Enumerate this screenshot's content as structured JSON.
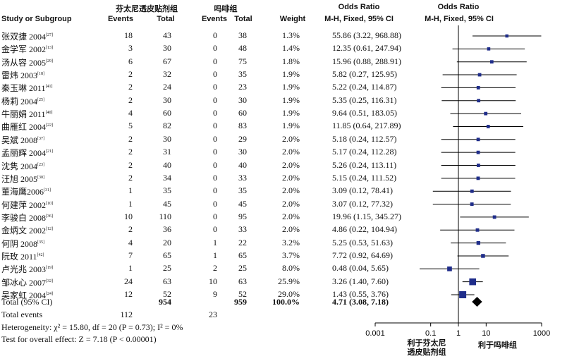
{
  "header": {
    "group1_title": "芬太尼透皮贴剂组",
    "group2_title": "吗啡组",
    "study_col": "Study or Subgroup",
    "events1": "Events",
    "total1": "Total",
    "events2": "Events",
    "total2": "Total",
    "weight": "Weight",
    "or_title_left": "Odds Ratio",
    "or_sub_left": "M-H, Fixed, 95% CI",
    "or_title_right": "Odds Ratio",
    "or_sub_right": "M-H, Fixed, 95% CI"
  },
  "rows": [
    {
      "study": "张双捷 2004",
      "ref": "[27]",
      "e1": "18",
      "t1": "43",
      "e2": "0",
      "t2": "38",
      "weight": "1.3%",
      "ci_text": "55.86 (3.22, 968.88)"
    },
    {
      "study": "金学军 2002",
      "ref": "[13]",
      "e1": "3",
      "t1": "30",
      "e2": "0",
      "t2": "48",
      "weight": "1.4%",
      "ci_text": "12.35 (0.61, 247.94)"
    },
    {
      "study": "汤从容 2005",
      "ref": "[29]",
      "e1": "6",
      "t1": "67",
      "e2": "0",
      "t2": "75",
      "weight": "1.8%",
      "ci_text": "15.96 (0.88, 288.91)"
    },
    {
      "study": "雷炜 2003",
      "ref": "[18]",
      "e1": "2",
      "t1": "32",
      "e2": "0",
      "t2": "35",
      "weight": "1.9%",
      "ci_text": "5.82 (0.27, 125.95)"
    },
    {
      "study": "秦玉琳 2011",
      "ref": "[41]",
      "e1": "2",
      "t1": "24",
      "e2": "0",
      "t2": "23",
      "weight": "1.9%",
      "ci_text": "5.22 (0.24, 114.87)"
    },
    {
      "study": "杨莉 2004",
      "ref": "[25]",
      "e1": "2",
      "t1": "30",
      "e2": "0",
      "t2": "30",
      "weight": "1.9%",
      "ci_text": "5.35 (0.25, 116.31)"
    },
    {
      "study": "牛丽娟 2011",
      "ref": "[40]",
      "e1": "4",
      "t1": "60",
      "e2": "0",
      "t2": "60",
      "weight": "1.9%",
      "ci_text": "9.64 (0.51, 183.05)"
    },
    {
      "study": "曲雁红 2004",
      "ref": "[22]",
      "e1": "5",
      "t1": "82",
      "e2": "0",
      "t2": "83",
      "weight": "1.9%",
      "ci_text": "11.85 (0.64, 217.89)"
    },
    {
      "study": "吴斌 2008",
      "ref": "[37]",
      "e1": "2",
      "t1": "30",
      "e2": "0",
      "t2": "29",
      "weight": "2.0%",
      "ci_text": "5.18 (0.24, 112.57)"
    },
    {
      "study": "孟丽辉 2004",
      "ref": "[21]",
      "e1": "2",
      "t1": "31",
      "e2": "0",
      "t2": "30",
      "weight": "2.0%",
      "ci_text": "5.17 (0.24, 112.28)"
    },
    {
      "study": "沈隽 2004",
      "ref": "[23]",
      "e1": "2",
      "t1": "40",
      "e2": "0",
      "t2": "40",
      "weight": "2.0%",
      "ci_text": "5.26 (0.24, 113.11)"
    },
    {
      "study": "汪旭 2005",
      "ref": "[30]",
      "e1": "2",
      "t1": "34",
      "e2": "0",
      "t2": "33",
      "weight": "2.0%",
      "ci_text": "5.15 (0.24, 111.52)"
    },
    {
      "study": "董海鹰2006",
      "ref": "[31]",
      "e1": "1",
      "t1": "35",
      "e2": "0",
      "t2": "35",
      "weight": "2.0%",
      "ci_text": "3.09 (0.12, 78.41)"
    },
    {
      "study": "何建萍 2002",
      "ref": "[10]",
      "e1": "1",
      "t1": "45",
      "e2": "0",
      "t2": "45",
      "weight": "2.0%",
      "ci_text": "3.07 (0.12, 77.32)"
    },
    {
      "study": "李骏白 2008",
      "ref": "[36]",
      "e1": "10",
      "t1": "110",
      "e2": "0",
      "t2": "95",
      "weight": "2.0%",
      "ci_text": "19.96 (1.15, 345.27)"
    },
    {
      "study": "金炳文 2002",
      "ref": "[12]",
      "e1": "2",
      "t1": "36",
      "e2": "0",
      "t2": "33",
      "weight": "2.0%",
      "ci_text": "4.86 (0.22, 104.94)"
    },
    {
      "study": "何阴 2008",
      "ref": "[35]",
      "e1": "4",
      "t1": "20",
      "e2": "1",
      "t2": "22",
      "weight": "3.2%",
      "ci_text": "5.25 (0.53, 51.63)"
    },
    {
      "study": "阮玫 2011",
      "ref": "[42]",
      "e1": "7",
      "t1": "65",
      "e2": "1",
      "t2": "65",
      "weight": "3.7%",
      "ci_text": "7.72 (0.92, 64.69)"
    },
    {
      "study": "卢光兆 2003",
      "ref": "[19]",
      "e1": "1",
      "t1": "25",
      "e2": "2",
      "t2": "25",
      "weight": "8.0%",
      "ci_text": "0.48 (0.04, 5.65)"
    },
    {
      "study": "邹冰心 2007",
      "ref": "[32]",
      "e1": "24",
      "t1": "63",
      "e2": "10",
      "t2": "63",
      "weight": "25.9%",
      "ci_text": "3.26 (1.40, 7.60)"
    },
    {
      "study": "吴家虹 2004",
      "ref": "[24]",
      "e1": "12",
      "t1": "52",
      "e2": "9",
      "t2": "52",
      "weight": "29.0%",
      "ci_text": "1.43 (0.55, 3.76)"
    }
  ],
  "total": {
    "label": "Total (95% CI)",
    "t1": "954",
    "t2": "959",
    "weight": "100.0%",
    "ci_text": "4.71 (3.08, 7.18)"
  },
  "total_events": {
    "label": "Total events",
    "e1": "112",
    "e2": "23"
  },
  "heterogeneity": "Heterogeneity: χ² = 15.80, df = 20 (P = 0.73); I² = 0%",
  "overall_effect": "Test for overall effect: Z = 7.18 (P < 0.00001)",
  "axis": {
    "tick_labels": [
      "0.001",
      "0.1",
      "1",
      "10",
      "1000"
    ],
    "favours_left": [
      "利于芬太尼",
      "透皮贴剂组"
    ],
    "favours_right": "利于吗啡组"
  },
  "colors": {
    "marker": "#1f2d8a",
    "diamond": "#000000",
    "line": "#000000"
  },
  "chart_data": {
    "type": "forest",
    "scale": "log",
    "xlim": [
      0.001,
      1000
    ],
    "ticks": [
      0.001,
      0.1,
      1,
      10,
      1000
    ],
    "studies": [
      {
        "name": "张双捷 2004",
        "or": 55.86,
        "lower": 3.22,
        "upper": 968.88,
        "weight": 1.3
      },
      {
        "name": "金学军 2002",
        "or": 12.35,
        "lower": 0.61,
        "upper": 247.94,
        "weight": 1.4
      },
      {
        "name": "汤从容 2005",
        "or": 15.96,
        "lower": 0.88,
        "upper": 288.91,
        "weight": 1.8
      },
      {
        "name": "雷炜 2003",
        "or": 5.82,
        "lower": 0.27,
        "upper": 125.95,
        "weight": 1.9
      },
      {
        "name": "秦玉琳 2011",
        "or": 5.22,
        "lower": 0.24,
        "upper": 114.87,
        "weight": 1.9
      },
      {
        "name": "杨莉 2004",
        "or": 5.35,
        "lower": 0.25,
        "upper": 116.31,
        "weight": 1.9
      },
      {
        "name": "牛丽娟 2011",
        "or": 9.64,
        "lower": 0.51,
        "upper": 183.05,
        "weight": 1.9
      },
      {
        "name": "曲雁红 2004",
        "or": 11.85,
        "lower": 0.64,
        "upper": 217.89,
        "weight": 1.9
      },
      {
        "name": "吴斌 2008",
        "or": 5.18,
        "lower": 0.24,
        "upper": 112.57,
        "weight": 2.0
      },
      {
        "name": "孟丽辉 2004",
        "or": 5.17,
        "lower": 0.24,
        "upper": 112.28,
        "weight": 2.0
      },
      {
        "name": "沈隽 2004",
        "or": 5.26,
        "lower": 0.24,
        "upper": 113.11,
        "weight": 2.0
      },
      {
        "name": "汪旭 2005",
        "or": 5.15,
        "lower": 0.24,
        "upper": 111.52,
        "weight": 2.0
      },
      {
        "name": "董海鹰2006",
        "or": 3.09,
        "lower": 0.12,
        "upper": 78.41,
        "weight": 2.0
      },
      {
        "name": "何建萍 2002",
        "or": 3.07,
        "lower": 0.12,
        "upper": 77.32,
        "weight": 2.0
      },
      {
        "name": "李骏白 2008",
        "or": 19.96,
        "lower": 1.15,
        "upper": 345.27,
        "weight": 2.0
      },
      {
        "name": "金炳文 2002",
        "or": 4.86,
        "lower": 0.22,
        "upper": 104.94,
        "weight": 2.0
      },
      {
        "name": "何阴 2008",
        "or": 5.25,
        "lower": 0.53,
        "upper": 51.63,
        "weight": 3.2
      },
      {
        "name": "阮玫 2011",
        "or": 7.72,
        "lower": 0.92,
        "upper": 64.69,
        "weight": 3.7
      },
      {
        "name": "卢光兆 2003",
        "or": 0.48,
        "lower": 0.04,
        "upper": 5.65,
        "weight": 8.0
      },
      {
        "name": "邹冰心 2007",
        "or": 3.26,
        "lower": 1.4,
        "upper": 7.6,
        "weight": 25.9
      },
      {
        "name": "吴家虹 2004",
        "or": 1.43,
        "lower": 0.55,
        "upper": 3.76,
        "weight": 29.0
      }
    ],
    "pooled": {
      "or": 4.71,
      "lower": 3.08,
      "upper": 7.18
    }
  }
}
